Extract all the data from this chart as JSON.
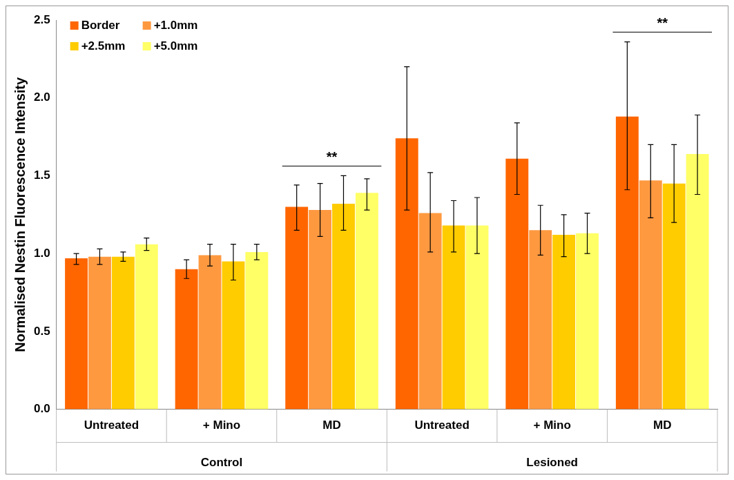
{
  "chart_data": {
    "type": "bar",
    "ylabel": "Normalised Nestin Fluorescence Intensity",
    "categories": [
      "Untreated",
      "+ Mino",
      "MD",
      "Untreated",
      "+ Mino",
      "MD"
    ],
    "series": [
      {
        "name": "Border",
        "color": "#ff6600",
        "values": [
          0.97,
          0.9,
          1.3,
          1.74,
          1.61,
          1.88
        ],
        "errors": [
          [
            0.93,
            1.0
          ],
          [
            0.84,
            0.96
          ],
          [
            1.15,
            1.44
          ],
          [
            1.28,
            2.2
          ],
          [
            1.38,
            1.84
          ],
          [
            1.41,
            2.36
          ]
        ]
      },
      {
        "name": "+1.0mm",
        "color": "#ff9940",
        "values": [
          0.98,
          0.99,
          1.28,
          1.26,
          1.15,
          1.47
        ],
        "errors": [
          [
            0.93,
            1.03
          ],
          [
            0.92,
            1.06
          ],
          [
            1.11,
            1.45
          ],
          [
            1.01,
            1.52
          ],
          [
            0.99,
            1.31
          ],
          [
            1.23,
            1.7
          ]
        ]
      },
      {
        "name": "+2.5mm",
        "color": "#ffcc00",
        "values": [
          0.98,
          0.95,
          1.32,
          1.18,
          1.12,
          1.45
        ],
        "errors": [
          [
            0.95,
            1.01
          ],
          [
            0.83,
            1.06
          ],
          [
            1.15,
            1.5
          ],
          [
            1.01,
            1.34
          ],
          [
            0.98,
            1.25
          ],
          [
            1.2,
            1.7
          ]
        ]
      },
      {
        "name": "+5.0mm",
        "color": "#ffff66",
        "values": [
          1.06,
          1.01,
          1.39,
          1.18,
          1.13,
          1.64
        ],
        "errors": [
          [
            1.02,
            1.1
          ],
          [
            0.96,
            1.06
          ],
          [
            1.28,
            1.48
          ],
          [
            1.0,
            1.36
          ],
          [
            1.0,
            1.26
          ],
          [
            1.38,
            1.89
          ]
        ]
      }
    ],
    "ylim": [
      0,
      2.5
    ],
    "yticks": [
      {
        "value": 0,
        "label": "0.0"
      },
      {
        "value": 0.5,
        "label": "0.5"
      },
      {
        "value": 1,
        "label": "1.0"
      },
      {
        "value": 1.5,
        "label": "1.5"
      },
      {
        "value": 2,
        "label": "2.0"
      },
      {
        "value": 2.5,
        "label": "2.5"
      }
    ],
    "grid": false,
    "legend": "top left",
    "annotations": [
      "**",
      "**",
      "Control",
      "Lesioned"
    ]
  }
}
